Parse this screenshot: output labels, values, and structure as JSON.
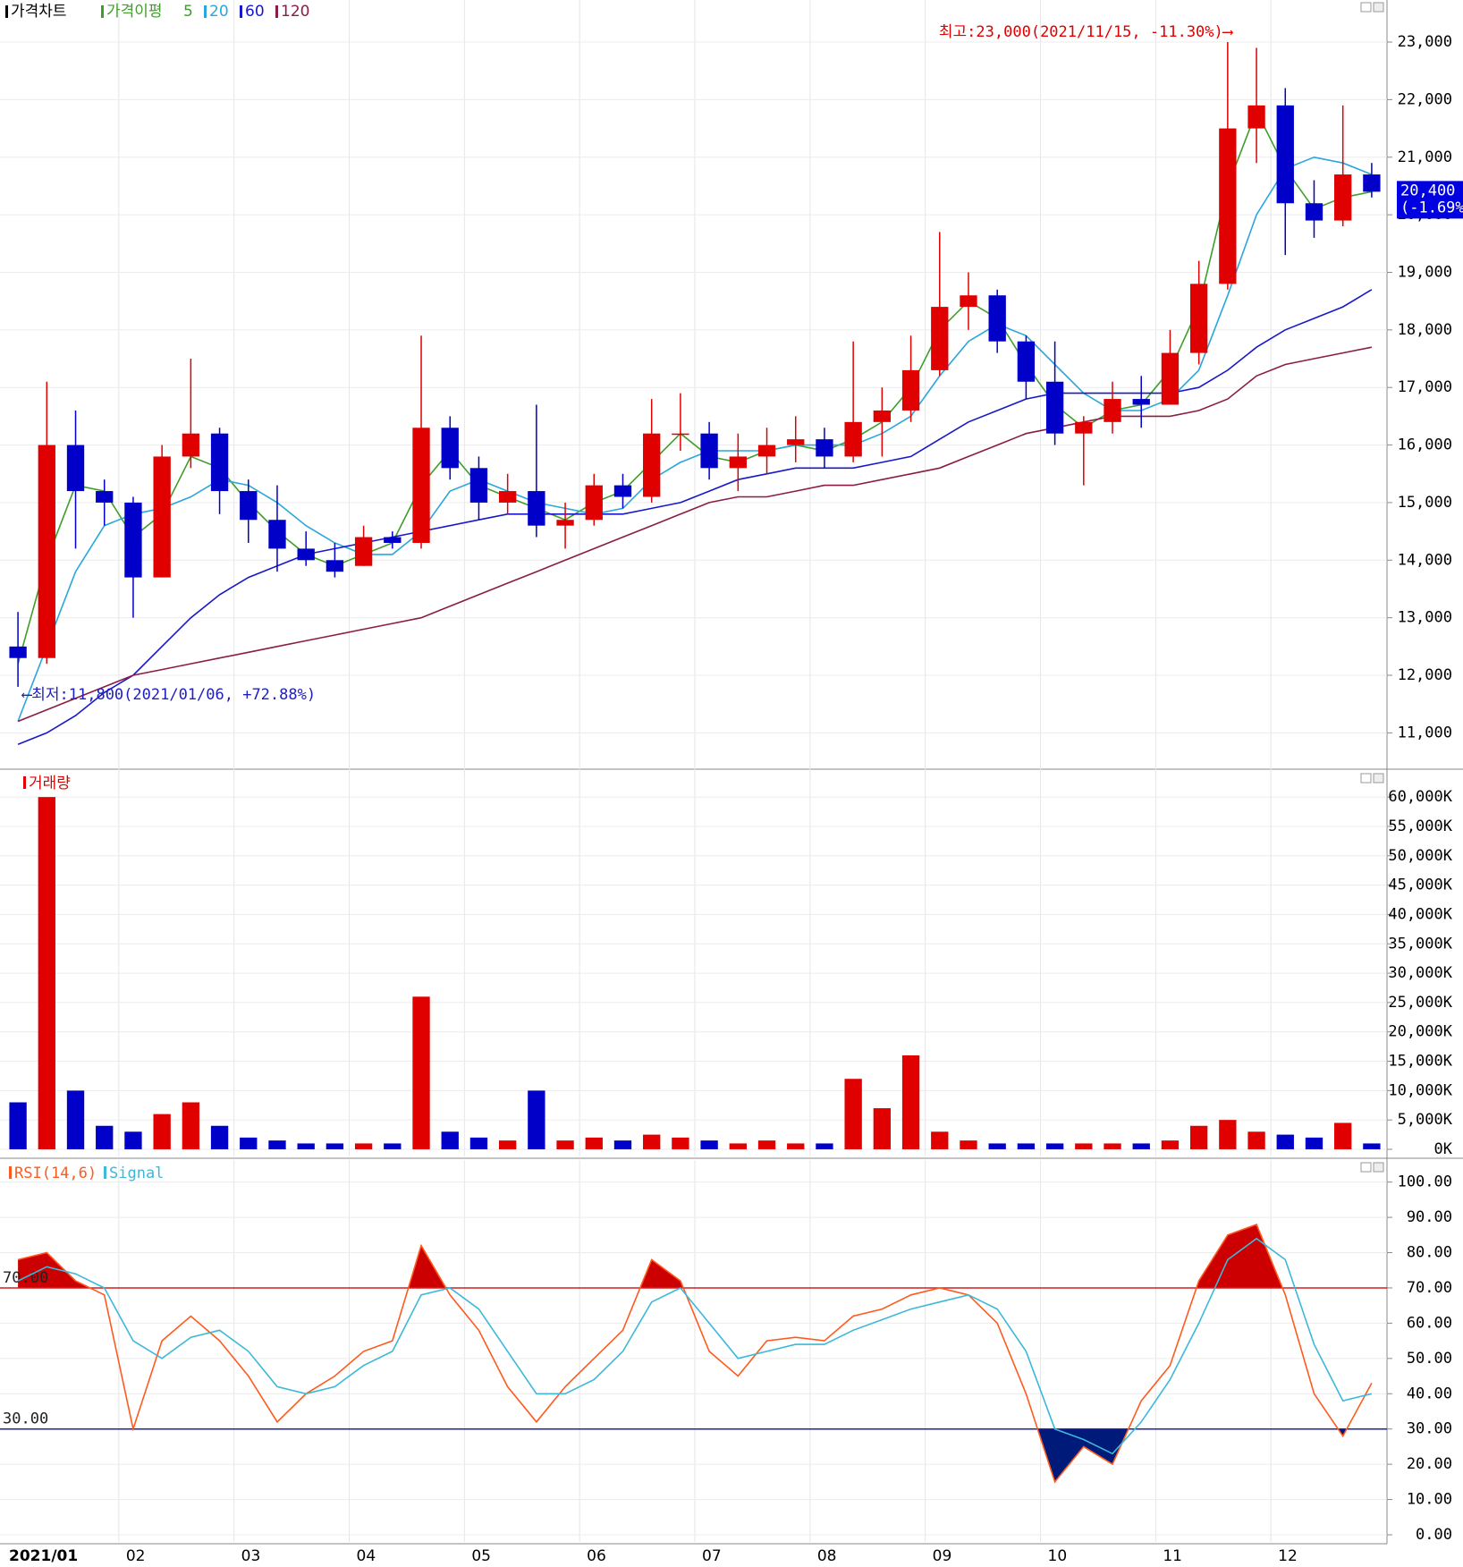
{
  "chart_data": [
    {
      "type": "candlestick",
      "title": "가격차트",
      "ma_title": "가격이평",
      "up_color": "#e00000",
      "down_color": "#0000c8",
      "open": [
        12500,
        12300,
        16000,
        15200,
        15000,
        13700,
        15800,
        16200,
        15200,
        14700,
        14200,
        14000,
        13900,
        14400,
        14300,
        16300,
        15600,
        15000,
        15200,
        14600,
        14700,
        15300,
        15100,
        16200,
        16200,
        15600,
        15800,
        16000,
        16100,
        15800,
        16400,
        16600,
        17300,
        18400,
        18600,
        17800,
        17100,
        16200,
        16400,
        16800,
        16700,
        17600,
        18800,
        21500,
        21900,
        20200,
        19900,
        20700
      ],
      "high": [
        13100,
        17100,
        16600,
        15400,
        15100,
        16000,
        17500,
        16300,
        15400,
        15300,
        14500,
        14300,
        14600,
        14500,
        17900,
        16500,
        15800,
        15500,
        16700,
        15000,
        15500,
        15500,
        16800,
        16900,
        16400,
        16200,
        16300,
        16500,
        16300,
        17800,
        17000,
        17900,
        19700,
        19000,
        18700,
        17900,
        17800,
        16500,
        17100,
        17200,
        18000,
        19200,
        23000,
        22900,
        22200,
        20600,
        21900,
        20900
      ],
      "low": [
        11800,
        12200,
        14200,
        14600,
        13000,
        13700,
        15600,
        14800,
        14300,
        13800,
        13900,
        13700,
        13900,
        14200,
        14200,
        15400,
        14700,
        14800,
        14400,
        14200,
        14600,
        14900,
        15000,
        15900,
        15400,
        15200,
        15500,
        15700,
        15600,
        15700,
        15800,
        16400,
        17200,
        18000,
        17600,
        16800,
        16000,
        15300,
        16200,
        16300,
        16700,
        17400,
        18700,
        20900,
        19300,
        19600,
        19800,
        20300
      ],
      "close": [
        12300,
        16000,
        15200,
        15000,
        13700,
        15800,
        16200,
        15200,
        14700,
        14200,
        14000,
        13800,
        14400,
        14300,
        16300,
        15600,
        15000,
        15200,
        14600,
        14700,
        15300,
        15100,
        16200,
        16200,
        15600,
        15800,
        16000,
        16100,
        15800,
        16400,
        16600,
        17300,
        18400,
        18600,
        17800,
        17100,
        16200,
        16400,
        16800,
        16700,
        17600,
        18800,
        21500,
        21900,
        20200,
        19900,
        20700,
        20400
      ],
      "series": [
        {
          "name": "5",
          "color": "#3f9e2a",
          "values": [
            12200,
            14000,
            15300,
            15200,
            14400,
            14800,
            15800,
            15600,
            15000,
            14500,
            14100,
            13900,
            14100,
            14300,
            15300,
            15900,
            15300,
            15100,
            14900,
            14700,
            15000,
            15200,
            15700,
            16200,
            15800,
            15700,
            15900,
            16000,
            15900,
            16100,
            16400,
            17000,
            18000,
            18500,
            18200,
            17400,
            16700,
            16300,
            16600,
            16700,
            17300,
            18400,
            20500,
            21800,
            20800,
            20100,
            20300,
            20400
          ]
        },
        {
          "name": "20",
          "color": "#2aa6dc",
          "values": [
            11200,
            12500,
            13800,
            14600,
            14800,
            14900,
            15100,
            15400,
            15300,
            15000,
            14600,
            14300,
            14100,
            14100,
            14500,
            15200,
            15400,
            15200,
            15000,
            14900,
            14800,
            14900,
            15400,
            15700,
            15900,
            15900,
            15900,
            16000,
            16000,
            16000,
            16200,
            16500,
            17200,
            17800,
            18100,
            17900,
            17400,
            16900,
            16600,
            16600,
            16800,
            17300,
            18600,
            20000,
            20800,
            21000,
            20900,
            20700
          ]
        },
        {
          "name": "60",
          "color": "#1818c8",
          "values": [
            10800,
            11000,
            11300,
            11700,
            12000,
            12500,
            13000,
            13400,
            13700,
            13900,
            14100,
            14200,
            14300,
            14400,
            14500,
            14600,
            14700,
            14800,
            14800,
            14800,
            14800,
            14800,
            14900,
            15000,
            15200,
            15400,
            15500,
            15600,
            15600,
            15600,
            15700,
            15800,
            16100,
            16400,
            16600,
            16800,
            16900,
            16900,
            16900,
            16900,
            16900,
            17000,
            17300,
            17700,
            18000,
            18200,
            18400,
            18700
          ]
        },
        {
          "name": "120",
          "color": "#8a1c48",
          "values": [
            11200,
            11400,
            11600,
            11800,
            12000,
            12100,
            12200,
            12300,
            12400,
            12500,
            12600,
            12700,
            12800,
            12900,
            13000,
            13200,
            13400,
            13600,
            13800,
            14000,
            14200,
            14400,
            14600,
            14800,
            15000,
            15100,
            15100,
            15200,
            15300,
            15300,
            15400,
            15500,
            15600,
            15800,
            16000,
            16200,
            16300,
            16400,
            16500,
            16500,
            16500,
            16600,
            16800,
            17200,
            17400,
            17500,
            17600,
            17700
          ]
        }
      ],
      "ylim": [
        10400,
        23420
      ],
      "yticks": [
        {
          "value": 11000,
          "label": "11,000"
        },
        {
          "value": 12000,
          "label": "12,000"
        },
        {
          "value": 13000,
          "label": "13,000"
        },
        {
          "value": 14000,
          "label": "14,000"
        },
        {
          "value": 15000,
          "label": "15,000"
        },
        {
          "value": 16000,
          "label": "16,000"
        },
        {
          "value": 17000,
          "label": "17,000"
        },
        {
          "value": 18000,
          "label": "18,000"
        },
        {
          "value": 19000,
          "label": "19,000"
        },
        {
          "value": 20000,
          "label": "20,000"
        },
        {
          "value": 21000,
          "label": "21,000"
        },
        {
          "value": 22000,
          "label": "22,000"
        },
        {
          "value": 23000,
          "label": "23,000"
        }
      ],
      "annotations": [
        "최고:23,000(2021/11/15, -11.30%)⟶",
        "⟵최저:11,800(2021/01/06, +72.88%)"
      ],
      "last_price": {
        "value": 20400,
        "label": "20,400",
        "change": "(-1.69%)"
      },
      "grid": true
    },
    {
      "type": "bar",
      "title": "거래량",
      "color": "#e00000",
      "values": [
        8000,
        60000,
        10000,
        4000,
        3000,
        6000,
        8000,
        4000,
        2000,
        1500,
        1000,
        1000,
        1000,
        1000,
        26000,
        3000,
        2000,
        1500,
        10000,
        1500,
        2000,
        1500,
        2500,
        2000,
        1500,
        1000,
        1500,
        1000,
        1000,
        12000,
        7000,
        16000,
        3000,
        1500,
        1000,
        1000,
        1000,
        1000,
        1000,
        1000,
        1500,
        4000,
        5000,
        3000,
        2500,
        2000,
        4500,
        1000
      ],
      "ylim": [
        0,
        61700
      ],
      "yticks": [
        {
          "value": 0,
          "label": "0K"
        },
        {
          "value": 5000,
          "label": "5,000K"
        },
        {
          "value": 10000,
          "label": "10,000K"
        },
        {
          "value": 15000,
          "label": "15,000K"
        },
        {
          "value": 20000,
          "label": "20,000K"
        },
        {
          "value": 25000,
          "label": "25,000K"
        },
        {
          "value": 30000,
          "label": "30,000K"
        },
        {
          "value": 35000,
          "label": "35,000K"
        },
        {
          "value": 40000,
          "label": "40,000K"
        },
        {
          "value": 45000,
          "label": "45,000K"
        },
        {
          "value": 50000,
          "label": "50,000K"
        },
        {
          "value": 55000,
          "label": "55,000K"
        },
        {
          "value": 60000,
          "label": "60,000K"
        }
      ],
      "grid": true
    },
    {
      "type": "line",
      "categories": [
        "2021/01",
        null,
        null,
        null,
        "02",
        null,
        null,
        null,
        "03",
        null,
        null,
        null,
        "04",
        null,
        null,
        null,
        "05",
        null,
        null,
        null,
        "06",
        null,
        null,
        null,
        "07",
        null,
        null,
        null,
        "08",
        null,
        null,
        null,
        "09",
        null,
        null,
        null,
        "10",
        null,
        null,
        null,
        "11",
        null,
        null,
        null,
        "12",
        null,
        null,
        null
      ],
      "series": [
        {
          "name": "RSI(14,6)",
          "color": "#ff5a1e",
          "values": [
            78,
            80,
            72,
            68,
            30,
            55,
            62,
            55,
            45,
            32,
            40,
            45,
            52,
            55,
            82,
            68,
            58,
            42,
            32,
            42,
            50,
            58,
            78,
            72,
            52,
            45,
            55,
            56,
            55,
            62,
            64,
            68,
            70,
            68,
            60,
            40,
            15,
            25,
            20,
            38,
            48,
            72,
            85,
            88,
            68,
            40,
            28,
            43
          ]
        },
        {
          "name": "Signal",
          "color": "#3cb8d8",
          "values": [
            72,
            76,
            74,
            70,
            55,
            50,
            56,
            58,
            52,
            42,
            40,
            42,
            48,
            52,
            68,
            70,
            64,
            52,
            40,
            40,
            44,
            52,
            66,
            70,
            60,
            50,
            52,
            54,
            54,
            58,
            61,
            64,
            66,
            68,
            64,
            52,
            30,
            27,
            23,
            32,
            44,
            60,
            78,
            84,
            78,
            54,
            38,
            40
          ]
        }
      ],
      "levels": [
        {
          "value": 70,
          "label": "70.00",
          "color": "#d02020",
          "fill": "#cc0000"
        },
        {
          "value": 30,
          "label": "30.00",
          "color": "#2020b0",
          "fill": "#001a7a"
        }
      ],
      "ylim": [
        0,
        106
      ],
      "yticks": [
        {
          "value": 0,
          "label": "0.00"
        },
        {
          "value": 10,
          "label": "10.00"
        },
        {
          "value": 20,
          "label": "20.00"
        },
        {
          "value": 30,
          "label": "30.00"
        },
        {
          "value": 40,
          "label": "40.00"
        },
        {
          "value": 50,
          "label": "50.00"
        },
        {
          "value": 60,
          "label": "60.00"
        },
        {
          "value": 70,
          "label": "70.00"
        },
        {
          "value": 80,
          "label": "80.00"
        },
        {
          "value": 90,
          "label": "90.00"
        },
        {
          "value": 100,
          "label": "100.00"
        }
      ],
      "grid": true
    }
  ]
}
